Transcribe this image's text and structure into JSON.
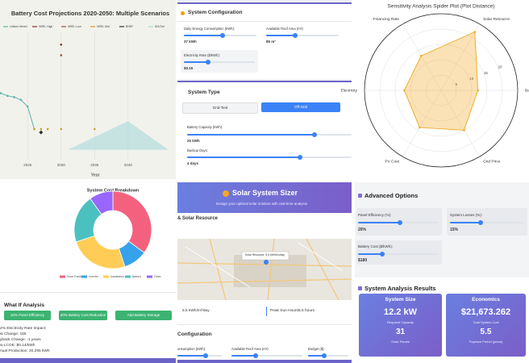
{
  "chart_data": [
    {
      "type": "line",
      "title": "Battery Cost Projections 2020-2050: Multiple Scenarios",
      "x_label": "Year",
      "xlim": [
        2021,
        2047
      ],
      "ylim": [
        0,
        200
      ],
      "xticks": [
        2025,
        2030,
        2035,
        2040
      ],
      "grid": true,
      "series": [
        {
          "name": "Lithium Mixed",
          "color": "#5ab4ac",
          "style": "line",
          "x": [
            2021,
            2022,
            2023,
            2024,
            2025,
            2026
          ],
          "values": [
            100,
            96,
            94,
            90,
            80,
            46
          ]
        },
        {
          "name": "NREL High",
          "color": "#7b2d26",
          "style": "points",
          "x": [
            2030
          ],
          "values": [
            173
          ]
        },
        {
          "name": "NREL Low",
          "color": "#a0522d",
          "style": "points",
          "x": [
            2030
          ],
          "values": [
            157
          ]
        },
        {
          "name": "NREL Mid",
          "color": "#c9a227",
          "style": "points",
          "x": [
            2026,
            2027,
            2028,
            2030,
            2035
          ],
          "values": [
            46,
            46,
            46,
            46,
            46
          ]
        },
        {
          "name": "BNEF",
          "color": "#333333",
          "style": "diamond",
          "x": [
            2027
          ],
          "values": [
            41
          ]
        },
        {
          "name": "IEA Ref",
          "color": "#a8d8dc",
          "style": "area",
          "x": [
            2031,
            2040,
            2046
          ],
          "values": [
            15,
            58,
            15
          ]
        }
      ]
    },
    {
      "type": "radar",
      "title": "Sensitivity Analysis Spider Plot (Plot Distance)",
      "categories": [
        "Financing Rate",
        "Solar Resource",
        "Battery Co",
        "Grid Price",
        "PV Cost",
        "Electricity"
      ],
      "values": [
        13,
        22,
        12,
        15,
        14,
        12
      ],
      "rlim": [
        0,
        25
      ],
      "rticks": [
        5,
        10,
        15,
        20
      ],
      "color": "#f0ad2e"
    },
    {
      "type": "donut",
      "title": "System Cost Breakdown",
      "categories": [
        "Solar Panels",
        "Inverter",
        "Installation",
        "Battery",
        "Other"
      ],
      "values": [
        35,
        10,
        25,
        20,
        10
      ],
      "colors": [
        "#f4617f",
        "#36a2eb",
        "#ffcd56",
        "#4bc0c0",
        "#9966ff"
      ]
    }
  ],
  "system_configuration": {
    "title": "System Configuration",
    "daily_label": "Daily Energy Consumption (kWh):",
    "daily_value": "37 kWh",
    "roof_label": "Available Roof Area (m²):",
    "roof_value": "85 m²",
    "rate_label": "Electricity Rate ($/kWh):",
    "rate_value": "$0.15"
  },
  "system_type": {
    "title": "System Type",
    "options": [
      "Grid-Tied",
      "Off-Grid"
    ],
    "battery_label": "Battery Capacity (kWh):",
    "battery_value": "20 kWh",
    "backup_label": "Backup Days:",
    "backup_value": "4 days"
  },
  "what_if": {
    "title": "What If Analysis",
    "buttons": [
      "10% Panel Efficiency",
      "20% Battery Cost Reduction",
      "Add Battery Storage"
    ],
    "lines": [
      "2% Electricity Rate Impact:",
      "st Change: 155",
      "yback Change: -1 years",
      "w LCOE: $0.14/kWh",
      "nual Production: 20,295 kWh"
    ]
  },
  "sizer": {
    "title": "Solar System Sizer",
    "subtitle": "Design your optimal solar solution with real-time analysis",
    "section": "& Solar Resource",
    "map_popup": "Solar Resource: 5.5 kWh/m²/day",
    "resource_value": "5.5 kWh/m²/day",
    "peak_label": "Peak Sun Hours:",
    "peak_value": "5.5 hours",
    "config_title": "Configuration",
    "fields": [
      "onsumption (kWh):",
      "Available Roof Area (m²):",
      "Budget ($):"
    ]
  },
  "advanced": {
    "title": "Advanced Options",
    "panel_eff_label": "Panel Efficiency (%):",
    "panel_eff_value": "20%",
    "losses_label": "System Losses (%):",
    "losses_value": "15%",
    "battery_cost_label": "Battery Cost ($/kWh):",
    "battery_cost_value": "$180"
  },
  "results": {
    "title": "System Analysis Results",
    "cards": [
      {
        "heading": "System Size",
        "value": "12.2 kW",
        "caption": "Required Capacity",
        "sub_value": "31",
        "sub_caption": "Solar Panels"
      },
      {
        "heading": "Economics",
        "value": "$21,673.262",
        "caption": "Total System Cost",
        "sub_value": "5.5",
        "sub_caption": "Payback Period (years)"
      }
    ]
  }
}
